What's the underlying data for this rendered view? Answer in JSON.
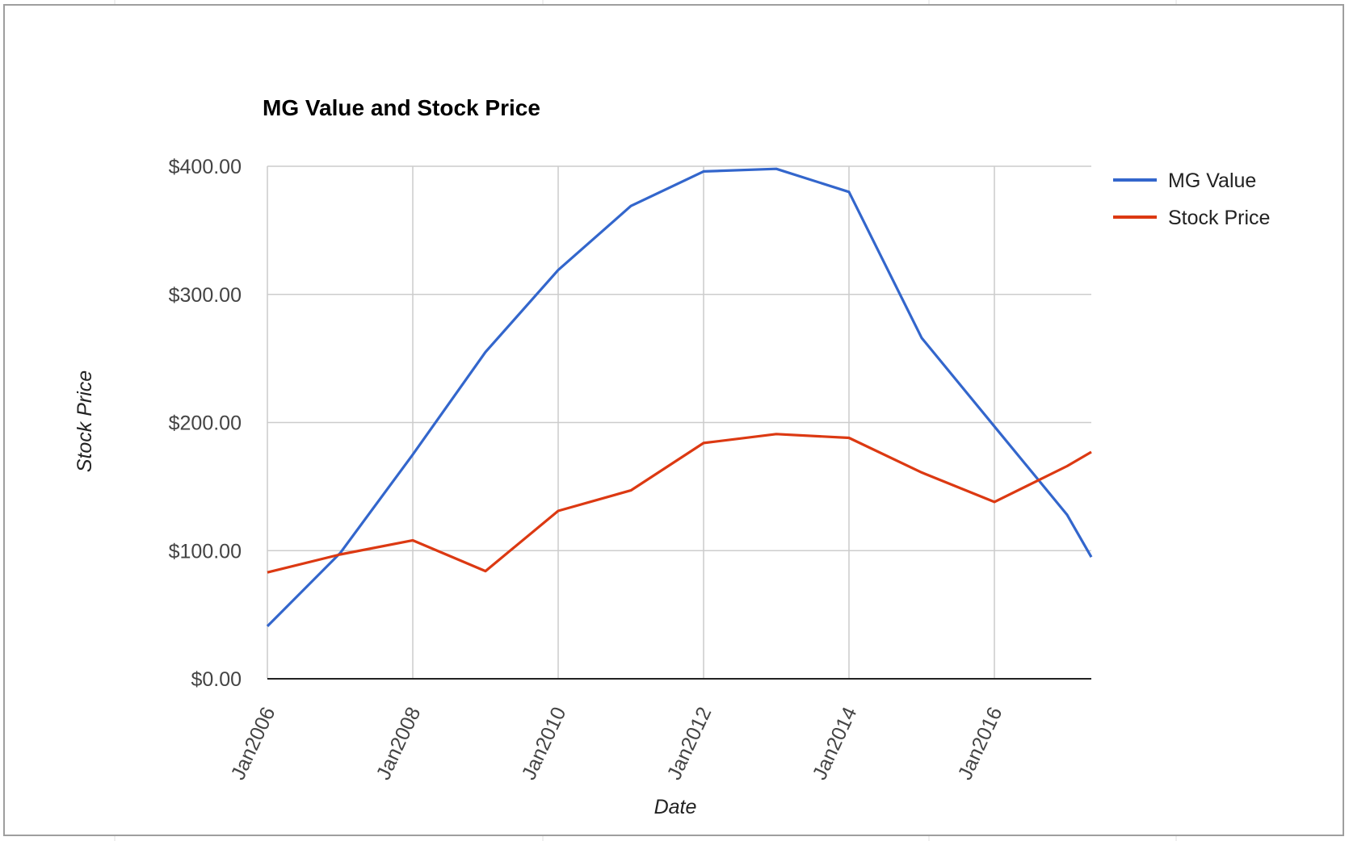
{
  "chart_data": {
    "type": "line",
    "title": "MG Value and Stock Price",
    "xlabel": "Date",
    "ylabel": "Stock Price",
    "x": [
      "2006-01",
      "2007-01",
      "2008-01",
      "2009-01",
      "2010-01",
      "2011-01",
      "2012-01",
      "2013-01",
      "2014-01",
      "2015-01",
      "2016-01",
      "2017-01",
      "2017-05"
    ],
    "xticks": [
      {
        "date": "2006-01",
        "label": "Jan2006"
      },
      {
        "date": "2008-01",
        "label": "Jan2008"
      },
      {
        "date": "2010-01",
        "label": "Jan2010"
      },
      {
        "date": "2012-01",
        "label": "Jan2012"
      },
      {
        "date": "2014-01",
        "label": "Jan2014"
      },
      {
        "date": "2016-01",
        "label": "Jan2016"
      }
    ],
    "yticks": [
      {
        "value": 0,
        "label": "$0.00"
      },
      {
        "value": 100,
        "label": "$100.00"
      },
      {
        "value": 200,
        "label": "$200.00"
      },
      {
        "value": 300,
        "label": "$300.00"
      },
      {
        "value": 400,
        "label": "$400.00"
      }
    ],
    "ylim": [
      0,
      400
    ],
    "xlim": [
      "2006-01",
      "2017-05"
    ],
    "grid": true,
    "legend_position": "right",
    "series": [
      {
        "name": "MG Value",
        "color": "#3366cc",
        "values": [
          41,
          98,
          175,
          255,
          319,
          369,
          396,
          398,
          380,
          266,
          197,
          128,
          95
        ]
      },
      {
        "name": "Stock Price",
        "color": "#dc3912",
        "values": [
          83,
          97,
          108,
          84,
          131,
          147,
          184,
          191,
          188,
          161,
          138,
          166,
          177
        ]
      }
    ]
  }
}
